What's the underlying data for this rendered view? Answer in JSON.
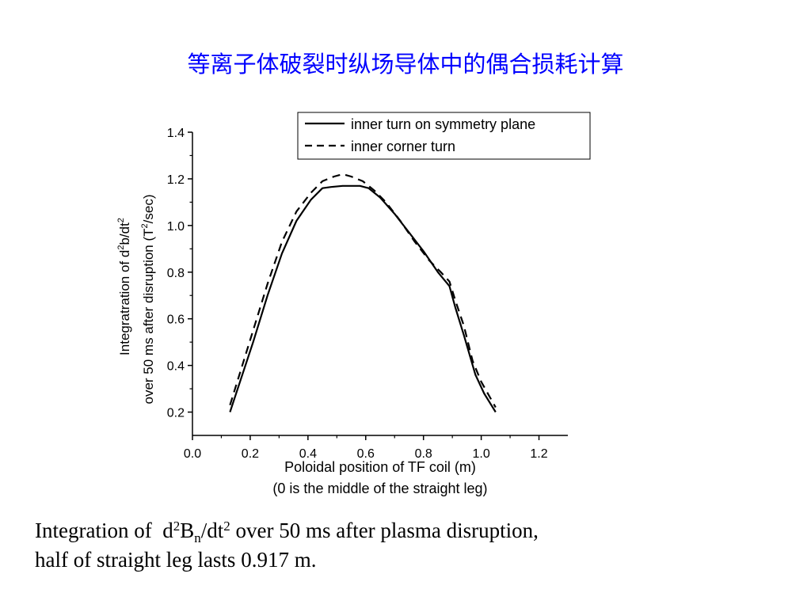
{
  "slide": {
    "title": "等离子体破裂时纵场导体中的偶合损耗计算"
  },
  "caption": {
    "integration_of": "Integration of",
    "d": "d",
    "sup_2a": "2",
    "B": "B",
    "sub_n": "n",
    "dt": "/dt",
    "sup_2b": "2",
    "rest": " over 50 ms after plasma disruption,",
    "line2": "half of straight leg lasts 0.917 m."
  },
  "chart_data": {
    "type": "line",
    "xlabel_line1": "Poloidal position of TF coil (m)",
    "xlabel_line2": "(0 is the middle of the straight leg)",
    "ylabel_line1_a": "Integratration of d",
    "ylabel_line1_sup1": "2",
    "ylabel_line1_b": "b/dt",
    "ylabel_line1_sup2": "2",
    "ylabel_line2_a": "over 50 ms after disruption (T",
    "ylabel_line2_sup": "2",
    "ylabel_line2_b": "/sec)",
    "xlim": [
      0.0,
      1.3
    ],
    "ylim": [
      0.1,
      1.4
    ],
    "x_ticks": [
      "0.0",
      "0.2",
      "0.4",
      "0.6",
      "0.8",
      "1.0",
      "1.2"
    ],
    "y_ticks": [
      "0.2",
      "0.4",
      "0.6",
      "0.8",
      "1.0",
      "1.2",
      "1.4"
    ],
    "legend_position": "top-right",
    "series": [
      {
        "name": "inner turn on symmetry plane",
        "style": "solid",
        "color": "#000000",
        "x": [
          0.13,
          0.17,
          0.21,
          0.26,
          0.31,
          0.36,
          0.41,
          0.45,
          0.48,
          0.52,
          0.55,
          0.58,
          0.61,
          0.65,
          0.7,
          0.75,
          0.8,
          0.85,
          0.89,
          0.91,
          0.94,
          0.98,
          1.01,
          1.05
        ],
        "y": [
          0.2,
          0.35,
          0.5,
          0.7,
          0.88,
          1.02,
          1.11,
          1.16,
          1.165,
          1.17,
          1.17,
          1.17,
          1.16,
          1.12,
          1.05,
          0.97,
          0.89,
          0.8,
          0.74,
          0.65,
          0.53,
          0.36,
          0.28,
          0.2
        ]
      },
      {
        "name": "inner corner turn",
        "style": "dashed",
        "color": "#000000",
        "x": [
          0.13,
          0.17,
          0.21,
          0.26,
          0.31,
          0.36,
          0.41,
          0.45,
          0.49,
          0.52,
          0.55,
          0.59,
          0.63,
          0.67,
          0.72,
          0.77,
          0.82,
          0.86,
          0.89,
          0.91,
          0.94,
          0.97,
          1.0,
          1.05
        ],
        "y": [
          0.23,
          0.39,
          0.55,
          0.75,
          0.93,
          1.06,
          1.14,
          1.19,
          1.21,
          1.22,
          1.21,
          1.19,
          1.15,
          1.1,
          1.02,
          0.93,
          0.85,
          0.8,
          0.76,
          0.68,
          0.57,
          0.42,
          0.33,
          0.22
        ]
      }
    ]
  }
}
